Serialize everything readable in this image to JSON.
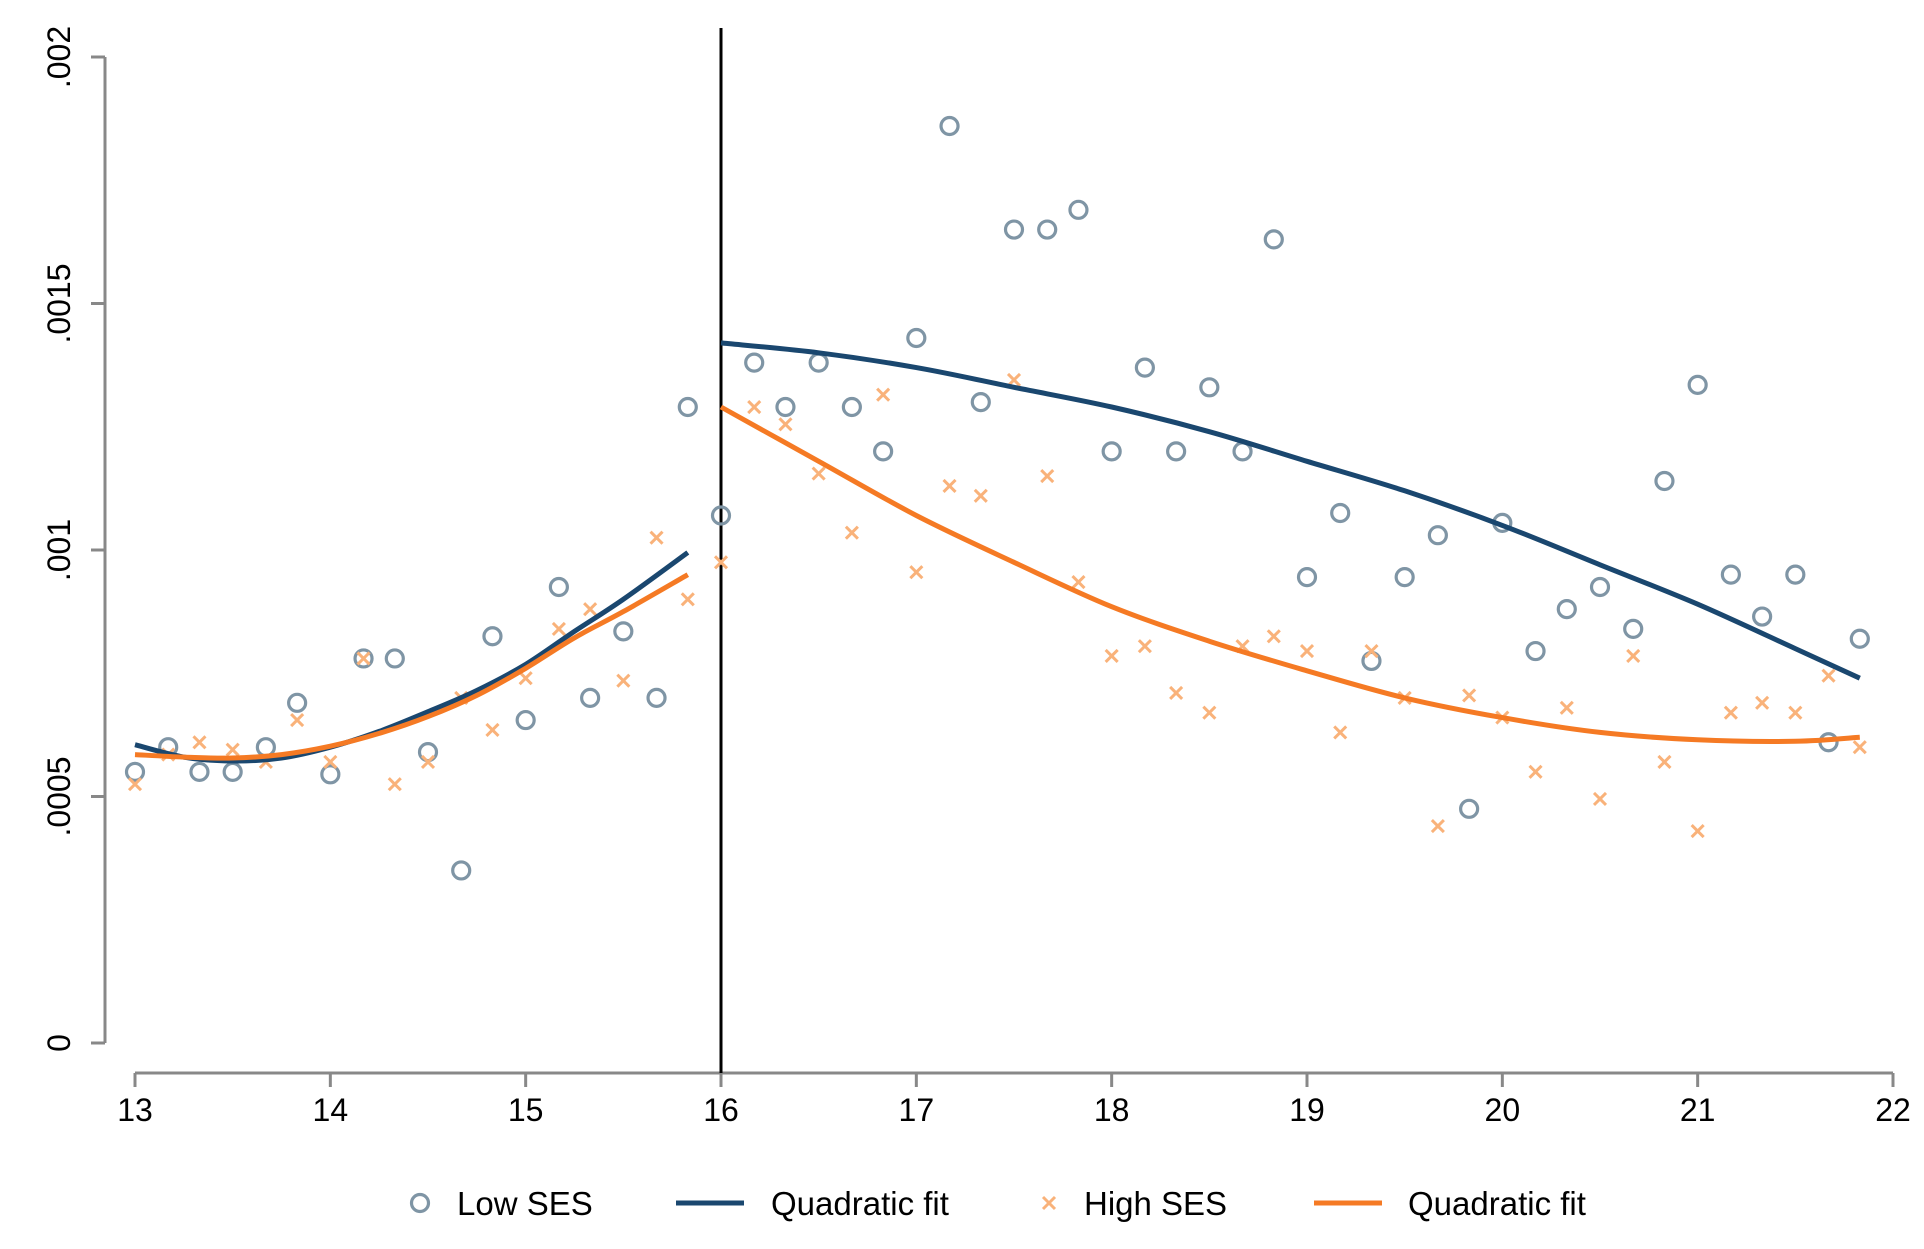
{
  "chart_data": {
    "type": "scatter",
    "xlim": [
      13,
      22
    ],
    "ylim": [
      0,
      0.002
    ],
    "x_ticks": [
      {
        "value": 13,
        "label": "13"
      },
      {
        "value": 14,
        "label": "14"
      },
      {
        "value": 15,
        "label": "15"
      },
      {
        "value": 16,
        "label": "16"
      },
      {
        "value": 17,
        "label": "17"
      },
      {
        "value": 18,
        "label": "18"
      },
      {
        "value": 19,
        "label": "19"
      },
      {
        "value": 20,
        "label": "20"
      },
      {
        "value": 21,
        "label": "21"
      },
      {
        "value": 22,
        "label": "22"
      }
    ],
    "y_ticks": [
      {
        "value": 0,
        "label": "0"
      },
      {
        "value": 0.0005,
        "label": ".0005"
      },
      {
        "value": 0.001,
        "label": ".001"
      },
      {
        "value": 0.0015,
        "label": ".0015"
      },
      {
        "value": 0.002,
        "label": ".002"
      }
    ],
    "cutoff_x": 16,
    "grid": false,
    "legend_position": "bottom",
    "colors": {
      "low_ses_points": "#7f95a5",
      "low_ses_fit": "#1a476f",
      "high_ses_points": "#f9b27a",
      "high_ses_fit": "#f57a24",
      "cutoff_line": "#000000",
      "axis": "#888888"
    },
    "series": [
      {
        "name": "Low SES",
        "kind": "points",
        "marker": "hollow-circle",
        "points": [
          [
            13.0,
            0.00055
          ],
          [
            13.17,
            0.0006
          ],
          [
            13.33,
            0.00055
          ],
          [
            13.5,
            0.00055
          ],
          [
            13.67,
            0.0006
          ],
          [
            13.83,
            0.00069
          ],
          [
            14.0,
            0.000545
          ],
          [
            14.17,
            0.00078
          ],
          [
            14.33,
            0.00078
          ],
          [
            14.5,
            0.00059
          ],
          [
            14.67,
            0.00035
          ],
          [
            14.83,
            0.000825
          ],
          [
            15.0,
            0.000655
          ],
          [
            15.17,
            0.000925
          ],
          [
            15.33,
            0.0007
          ],
          [
            15.5,
            0.000835
          ],
          [
            15.67,
            0.0007
          ],
          [
            15.83,
            0.00129
          ],
          [
            16.0,
            0.00107
          ],
          [
            16.17,
            0.00138
          ],
          [
            16.33,
            0.00129
          ],
          [
            16.5,
            0.00138
          ],
          [
            16.67,
            0.00129
          ],
          [
            16.83,
            0.0012
          ],
          [
            17.0,
            0.00143
          ],
          [
            17.17,
            0.00186
          ],
          [
            17.33,
            0.0013
          ],
          [
            17.5,
            0.00165
          ],
          [
            17.67,
            0.00165
          ],
          [
            17.83,
            0.00169
          ],
          [
            18.0,
            0.0012
          ],
          [
            18.17,
            0.00137
          ],
          [
            18.33,
            0.0012
          ],
          [
            18.5,
            0.00133
          ],
          [
            18.67,
            0.0012
          ],
          [
            18.83,
            0.00163
          ],
          [
            19.0,
            0.000945
          ],
          [
            19.17,
            0.001075
          ],
          [
            19.33,
            0.000775
          ],
          [
            19.5,
            0.000945
          ],
          [
            19.67,
            0.00103
          ],
          [
            19.83,
            0.000475
          ],
          [
            20.0,
            0.001055
          ],
          [
            20.17,
            0.000795
          ],
          [
            20.33,
            0.00088
          ],
          [
            20.5,
            0.000925
          ],
          [
            20.67,
            0.00084
          ],
          [
            20.83,
            0.00114
          ],
          [
            21.0,
            0.001335
          ],
          [
            21.17,
            0.00095
          ],
          [
            21.33,
            0.000865
          ],
          [
            21.5,
            0.00095
          ],
          [
            21.67,
            0.00061
          ],
          [
            21.83,
            0.00082
          ]
        ]
      },
      {
        "name": "Quadratic fit",
        "kind": "line",
        "segments": [
          {
            "x": [
              13.0,
              13.25,
              13.5,
              13.75,
              14.0,
              14.25,
              14.5,
              14.75,
              15.0,
              15.25,
              15.5,
              15.83
            ],
            "y": [
              0.000605,
              0.00058,
              0.000572,
              0.000578,
              0.0006,
              0.000632,
              0.000672,
              0.000715,
              0.000768,
              0.000835,
              0.0009,
              0.000995
            ]
          },
          {
            "x": [
              16.0,
              16.5,
              17.0,
              17.5,
              18.0,
              18.5,
              19.0,
              19.5,
              20.0,
              20.5,
              21.0,
              21.5,
              21.83
            ],
            "y": [
              0.00142,
              0.0014,
              0.00137,
              0.00133,
              0.00129,
              0.00124,
              0.00118,
              0.00112,
              0.00105,
              0.00097,
              0.00089,
              0.0008,
              0.00074
            ]
          }
        ]
      },
      {
        "name": "High SES",
        "kind": "points",
        "marker": "x",
        "points": [
          [
            13.0,
            0.000525
          ],
          [
            13.17,
            0.000585
          ],
          [
            13.33,
            0.00061
          ],
          [
            13.5,
            0.000595
          ],
          [
            13.67,
            0.00057
          ],
          [
            13.83,
            0.000655
          ],
          [
            14.0,
            0.00057
          ],
          [
            14.17,
            0.00078
          ],
          [
            14.33,
            0.000525
          ],
          [
            14.5,
            0.00057
          ],
          [
            14.67,
            0.0007
          ],
          [
            14.83,
            0.000635
          ],
          [
            15.0,
            0.00074
          ],
          [
            15.17,
            0.00084
          ],
          [
            15.33,
            0.00088
          ],
          [
            15.5,
            0.000735
          ],
          [
            15.67,
            0.001025
          ],
          [
            15.83,
            0.0009
          ],
          [
            16.0,
            0.000975
          ],
          [
            16.17,
            0.00129
          ],
          [
            16.33,
            0.001255
          ],
          [
            16.5,
            0.001155
          ],
          [
            16.67,
            0.001035
          ],
          [
            16.83,
            0.001315
          ],
          [
            17.0,
            0.000955
          ],
          [
            17.17,
            0.00113
          ],
          [
            17.33,
            0.00111
          ],
          [
            17.5,
            0.001345
          ],
          [
            17.67,
            0.00115
          ],
          [
            17.83,
            0.000935
          ],
          [
            18.0,
            0.000785
          ],
          [
            18.17,
            0.000805
          ],
          [
            18.33,
            0.00071
          ],
          [
            18.5,
            0.00067
          ],
          [
            18.67,
            0.000805
          ],
          [
            18.83,
            0.000825
          ],
          [
            19.0,
            0.000795
          ],
          [
            19.17,
            0.00063
          ],
          [
            19.33,
            0.000795
          ],
          [
            19.5,
            0.0007
          ],
          [
            19.67,
            0.00044
          ],
          [
            19.83,
            0.000705
          ],
          [
            20.0,
            0.00066
          ],
          [
            20.17,
            0.00055
          ],
          [
            20.33,
            0.00068
          ],
          [
            20.5,
            0.000495
          ],
          [
            20.67,
            0.000785
          ],
          [
            20.83,
            0.00057
          ],
          [
            21.0,
            0.00043
          ],
          [
            21.17,
            0.00067
          ],
          [
            21.33,
            0.00069
          ],
          [
            21.5,
            0.00067
          ],
          [
            21.67,
            0.000745
          ],
          [
            21.83,
            0.0006
          ]
        ]
      },
      {
        "name": "Quadratic fit",
        "kind": "line",
        "segments": [
          {
            "x": [
              13.0,
              13.25,
              13.5,
              13.75,
              14.0,
              14.25,
              14.5,
              14.75,
              15.0,
              15.25,
              15.5,
              15.83
            ],
            "y": [
              0.000585,
              0.00058,
              0.000578,
              0.000585,
              0.000602,
              0.000628,
              0.000662,
              0.000705,
              0.00076,
              0.000822,
              0.000875,
              0.00095
            ]
          },
          {
            "x": [
              16.0,
              16.5,
              17.0,
              17.5,
              18.0,
              18.5,
              19.0,
              19.5,
              20.0,
              20.5,
              21.0,
              21.5,
              21.83
            ],
            "y": [
              0.00129,
              0.00118,
              0.00107,
              0.000975,
              0.000885,
              0.000815,
              0.000755,
              0.0007,
              0.00066,
              0.00063,
              0.000615,
              0.000612,
              0.00062
            ]
          }
        ]
      }
    ]
  }
}
